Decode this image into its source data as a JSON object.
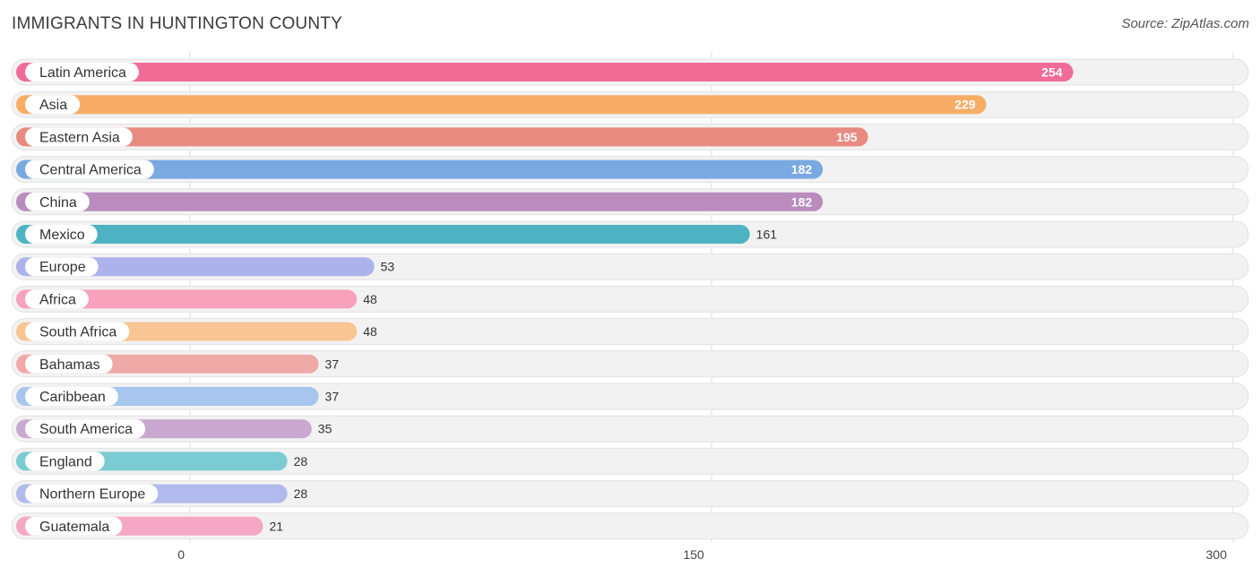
{
  "title": "IMMIGRANTS IN HUNTINGTON COUNTY",
  "source": "Source: ZipAtlas.com",
  "chart_data": {
    "type": "bar",
    "orientation": "horizontal",
    "categories": [
      "Latin America",
      "Asia",
      "Eastern Asia",
      "Central America",
      "China",
      "Mexico",
      "Europe",
      "Africa",
      "South Africa",
      "Bahamas",
      "Caribbean",
      "South America",
      "England",
      "Northern Europe",
      "Guatemala"
    ],
    "values": [
      254,
      229,
      195,
      182,
      182,
      161,
      53,
      48,
      48,
      37,
      37,
      35,
      28,
      28,
      21
    ],
    "value_labels": [
      "254",
      "229",
      "195",
      "182",
      "182",
      "161",
      "53",
      "48",
      "48",
      "37",
      "37",
      "35",
      "28",
      "28",
      "21"
    ],
    "colors": [
      "#f06b95",
      "#f8ad66",
      "#e88a80",
      "#79a9e0",
      "#b98cbd",
      "#4db3c2",
      "#abb3ea",
      "#f7a1bb",
      "#f9c593",
      "#efaaa8",
      "#a7c5ed",
      "#c9a9cf",
      "#7bcbd2",
      "#b2b9ec",
      "#f5a7c3"
    ],
    "xlim": [
      0,
      300
    ],
    "ticks": [
      0,
      150,
      300
    ],
    "tick_labels": [
      "0",
      "150",
      "300"
    ],
    "grid": true
  }
}
